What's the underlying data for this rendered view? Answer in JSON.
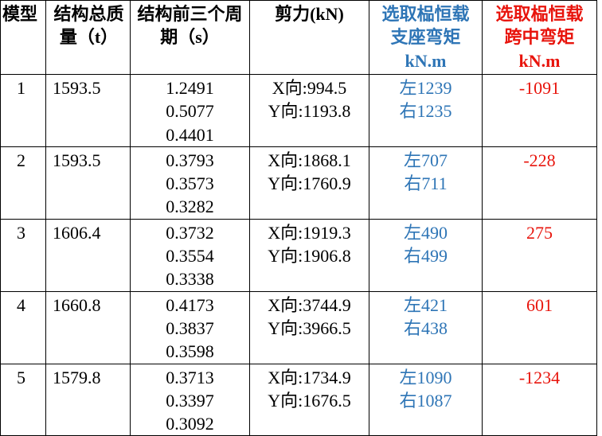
{
  "table": {
    "header": [
      [
        "模型"
      ],
      [
        "结构总质",
        "量（t）"
      ],
      [
        "结构前三个周",
        "期（s）"
      ],
      [
        "剪力(kN)"
      ],
      [
        "选取榀恒载",
        "支座弯矩",
        "kN.m"
      ],
      [
        "选取榀恒载",
        "跨中弯矩",
        "kN.m"
      ]
    ],
    "rows": [
      [
        [
          "1"
        ],
        [
          "1593.5"
        ],
        [
          "1.2491",
          "0.5077",
          "0.4401"
        ],
        [
          "X向:994.5",
          "Y向:1193.8"
        ],
        [
          "左1239",
          "右1235"
        ],
        [
          "-1091"
        ]
      ],
      [
        [
          "2"
        ],
        [
          "1593.5"
        ],
        [
          "0.3793",
          "0.3573",
          "0.3282"
        ],
        [
          "X向:1868.1",
          "Y向:1760.9"
        ],
        [
          "左707",
          "右711"
        ],
        [
          "-228"
        ]
      ],
      [
        [
          "3"
        ],
        [
          "1606.4"
        ],
        [
          "0.3732",
          "0.3554",
          "0.3338"
        ],
        [
          "X向:1919.3",
          "Y向:1906.8"
        ],
        [
          "左490",
          "右499"
        ],
        [
          "275"
        ]
      ],
      [
        [
          "4"
        ],
        [
          "1660.8"
        ],
        [
          "0.4173",
          "0.3837",
          "0.3598"
        ],
        [
          "X向:3744.9",
          "Y向:3966.5"
        ],
        [
          "左421",
          "右438"
        ],
        [
          "601"
        ]
      ],
      [
        [
          "5"
        ],
        [
          "1579.8"
        ],
        [
          "0.3713",
          "0.3397",
          "0.3092"
        ],
        [
          "X向:1734.9",
          "Y向:1676.5"
        ],
        [
          "左1090",
          "右1087"
        ],
        [
          "-1234"
        ]
      ]
    ]
  }
}
